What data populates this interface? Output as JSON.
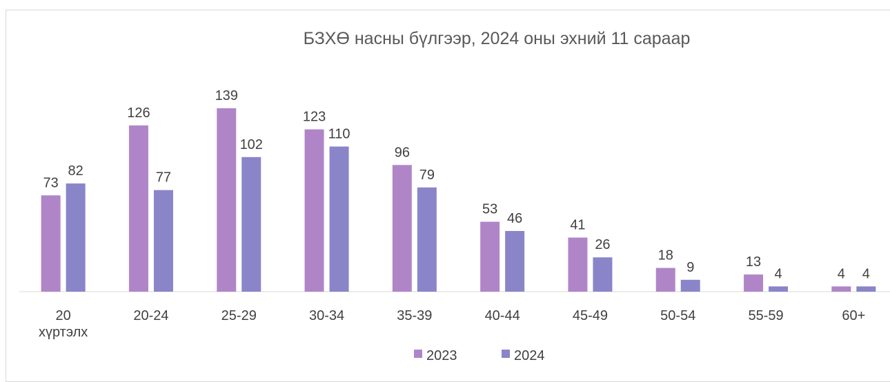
{
  "chart_data": {
    "type": "bar",
    "title": "БЗХӨ насны бүлгээр, 2024 оны эхний 11 сараар",
    "categories": [
      "20 хүртэлх",
      "20-24",
      "25-29",
      "30-34",
      "35-39",
      "40-44",
      "45-49",
      "50-54",
      "55-59",
      "60+"
    ],
    "series": [
      {
        "name": "2023",
        "color": "#b085c8",
        "values": [
          73,
          126,
          139,
          123,
          96,
          53,
          41,
          18,
          13,
          4
        ]
      },
      {
        "name": "2024",
        "color": "#8a85c9",
        "values": [
          82,
          77,
          102,
          110,
          79,
          46,
          26,
          9,
          4,
          4
        ]
      }
    ],
    "legend": "bottom"
  }
}
